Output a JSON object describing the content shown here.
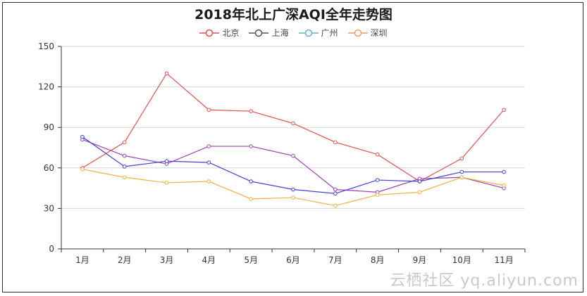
{
  "chart_data": {
    "type": "line",
    "title": "2018年北上广深AQI全年走势图",
    "categories": [
      "1月",
      "2月",
      "3月",
      "4月",
      "5月",
      "6月",
      "7月",
      "8月",
      "9月",
      "10月",
      "11月"
    ],
    "ylim": [
      0,
      150
    ],
    "yticks": [
      0,
      30,
      60,
      90,
      120,
      150
    ],
    "grid": true,
    "legend_position": "top-center",
    "series": [
      {
        "name": "北京",
        "legend_color": "#d9534f",
        "line_color": "#e05050",
        "values": [
          60,
          79,
          130,
          103,
          102,
          93,
          79,
          70,
          50,
          67,
          103
        ]
      },
      {
        "name": "上海",
        "legend_color": "#555555",
        "line_color": "#9b40b0",
        "values": [
          81,
          69,
          63,
          76,
          76,
          69,
          44,
          42,
          52,
          53,
          45
        ]
      },
      {
        "name": "广州",
        "legend_color": "#6ab0c8",
        "line_color": "#4040d0",
        "values": [
          83,
          61,
          65,
          64,
          50,
          44,
          41,
          51,
          50,
          57,
          57
        ]
      },
      {
        "name": "深圳",
        "legend_color": "#e8a070",
        "line_color": "#f0b040",
        "values": [
          59,
          53,
          49,
          50,
          37,
          38,
          32,
          40,
          42,
          53,
          47
        ]
      }
    ]
  },
  "watermark": "云栖社区 yq.aliyun.com"
}
